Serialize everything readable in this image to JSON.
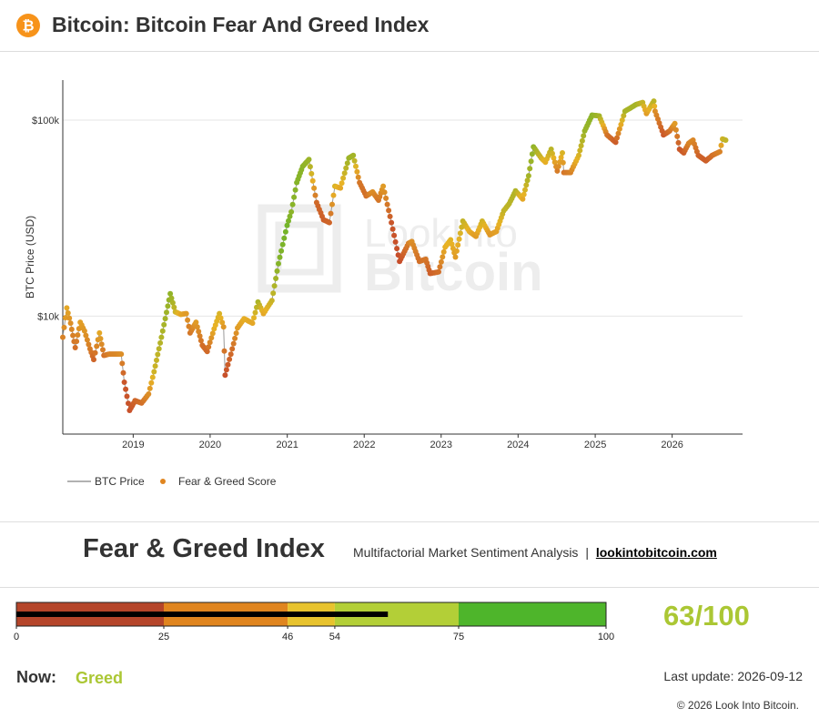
{
  "header": {
    "logo_icon": "bitcoin-logo-icon",
    "logo_color": "#f7931a",
    "logo_glyph": "₿",
    "title": "Bitcoin: Bitcoin Fear And Greed Index"
  },
  "chart_data": {
    "type": "scatter",
    "title": "",
    "xlabel": "",
    "ylabel": "BTC Price (USD)",
    "y_scale": "log",
    "ylim": [
      2500,
      160000
    ],
    "xlim": [
      "2018-02-01",
      "2026-12-01"
    ],
    "y_ticks": [
      {
        "value": 10000,
        "label": "$10k"
      },
      {
        "value": 100000,
        "label": "$100k"
      }
    ],
    "x_ticks": [
      "2019",
      "2020",
      "2021",
      "2022",
      "2023",
      "2024",
      "2025",
      "2026"
    ],
    "grid": "horizontal",
    "legend": {
      "placement": "bottom-left",
      "items": [
        {
          "label": "BTC Price",
          "kind": "line",
          "color": "#999999"
        },
        {
          "label": "Fear & Greed Score",
          "kind": "marker",
          "color": "#e0851f"
        }
      ]
    },
    "watermark": "LookIntoBitcoin",
    "color_scale": {
      "fear": "#c0392b",
      "neutral": "#e8b325",
      "greed": "#4eb52b"
    },
    "series": [
      {
        "name": "BTC Price",
        "points": [
          [
            "2018-02-01",
            7800,
            30
          ],
          [
            "2018-02-20",
            11000,
            45
          ],
          [
            "2018-03-10",
            9200,
            35
          ],
          [
            "2018-04-01",
            6900,
            22
          ],
          [
            "2018-04-25",
            9300,
            42
          ],
          [
            "2018-05-15",
            8400,
            38
          ],
          [
            "2018-06-10",
            6800,
            28
          ],
          [
            "2018-06-28",
            6000,
            18
          ],
          [
            "2018-07-25",
            8200,
            45
          ],
          [
            "2018-08-15",
            6300,
            22
          ],
          [
            "2018-09-10",
            6400,
            30
          ],
          [
            "2018-10-15",
            6400,
            32
          ],
          [
            "2018-11-05",
            6400,
            35
          ],
          [
            "2018-11-20",
            4600,
            12
          ],
          [
            "2018-12-15",
            3300,
            10
          ],
          [
            "2019-01-10",
            3700,
            18
          ],
          [
            "2019-02-10",
            3600,
            22
          ],
          [
            "2019-03-15",
            4000,
            35
          ],
          [
            "2019-04-10",
            5200,
            58
          ],
          [
            "2019-05-15",
            7800,
            68
          ],
          [
            "2019-06-26",
            13000,
            78
          ],
          [
            "2019-07-20",
            10500,
            60
          ],
          [
            "2019-08-15",
            10200,
            45
          ],
          [
            "2019-09-10",
            10300,
            40
          ],
          [
            "2019-09-28",
            8200,
            25
          ],
          [
            "2019-10-26",
            9300,
            40
          ],
          [
            "2019-11-25",
            7100,
            22
          ],
          [
            "2019-12-18",
            6600,
            20
          ],
          [
            "2020-01-20",
            8600,
            48
          ],
          [
            "2020-02-14",
            10300,
            55
          ],
          [
            "2020-03-05",
            8800,
            38
          ],
          [
            "2020-03-12",
            5000,
            10
          ],
          [
            "2020-04-15",
            6800,
            22
          ],
          [
            "2020-05-10",
            8700,
            40
          ],
          [
            "2020-06-10",
            9700,
            48
          ],
          [
            "2020-07-20",
            9200,
            45
          ],
          [
            "2020-08-15",
            11800,
            70
          ],
          [
            "2020-09-10",
            10300,
            45
          ],
          [
            "2020-10-20",
            12000,
            60
          ],
          [
            "2020-11-20",
            18500,
            82
          ],
          [
            "2020-12-31",
            29000,
            88
          ],
          [
            "2021-01-20",
            34000,
            80
          ],
          [
            "2021-02-15",
            48000,
            82
          ],
          [
            "2021-03-15",
            58000,
            80
          ],
          [
            "2021-04-14",
            63000,
            75
          ],
          [
            "2021-05-20",
            38000,
            20
          ],
          [
            "2021-06-22",
            31000,
            15
          ],
          [
            "2021-07-20",
            30000,
            18
          ],
          [
            "2021-08-15",
            46000,
            55
          ],
          [
            "2021-09-10",
            45000,
            45
          ],
          [
            "2021-10-20",
            64000,
            75
          ],
          [
            "2021-11-10",
            66000,
            72
          ],
          [
            "2021-12-10",
            48000,
            25
          ],
          [
            "2022-01-10",
            41000,
            22
          ],
          [
            "2022-02-10",
            43000,
            35
          ],
          [
            "2022-03-10",
            39000,
            25
          ],
          [
            "2022-04-01",
            46000,
            40
          ],
          [
            "2022-05-10",
            30000,
            12
          ],
          [
            "2022-06-18",
            19000,
            8
          ],
          [
            "2022-07-30",
            23500,
            28
          ],
          [
            "2022-08-15",
            24000,
            35
          ],
          [
            "2022-09-20",
            19000,
            22
          ],
          [
            "2022-10-20",
            19500,
            25
          ],
          [
            "2022-11-10",
            16500,
            15
          ],
          [
            "2022-12-20",
            16800,
            22
          ],
          [
            "2023-01-20",
            22500,
            48
          ],
          [
            "2023-02-15",
            24500,
            52
          ],
          [
            "2023-03-10",
            20000,
            40
          ],
          [
            "2023-04-14",
            30500,
            62
          ],
          [
            "2023-05-15",
            27000,
            48
          ],
          [
            "2023-06-15",
            25500,
            40
          ],
          [
            "2023-07-15",
            30500,
            58
          ],
          [
            "2023-08-20",
            26000,
            38
          ],
          [
            "2023-09-20",
            27000,
            42
          ],
          [
            "2023-10-25",
            34500,
            62
          ],
          [
            "2023-11-20",
            37500,
            65
          ],
          [
            "2023-12-20",
            43500,
            68
          ],
          [
            "2024-01-23",
            39500,
            45
          ],
          [
            "2024-02-20",
            52000,
            72
          ],
          [
            "2024-03-14",
            73000,
            78
          ],
          [
            "2024-04-20",
            64000,
            58
          ],
          [
            "2024-05-10",
            61000,
            48
          ],
          [
            "2024-06-06",
            71000,
            65
          ],
          [
            "2024-07-05",
            55000,
            28
          ],
          [
            "2024-07-29",
            68000,
            55
          ],
          [
            "2024-08-05",
            54000,
            25
          ],
          [
            "2024-09-06",
            54000,
            30
          ],
          [
            "2024-10-15",
            66000,
            55
          ],
          [
            "2024-11-12",
            88000,
            75
          ],
          [
            "2024-12-17",
            106000,
            80
          ],
          [
            "2025-01-20",
            105000,
            72
          ],
          [
            "2025-02-26",
            84000,
            25
          ],
          [
            "2025-04-08",
            77000,
            15
          ],
          [
            "2025-05-22",
            111000,
            70
          ],
          [
            "2025-07-14",
            120000,
            72
          ],
          [
            "2025-08-14",
            123000,
            62
          ],
          [
            "2025-09-01",
            108000,
            40
          ],
          [
            "2025-10-06",
            125000,
            65
          ],
          [
            "2025-10-12",
            111000,
            35
          ],
          [
            "2025-11-21",
            84000,
            12
          ],
          [
            "2025-12-20",
            88000,
            22
          ],
          [
            "2026-01-14",
            96000,
            40
          ],
          [
            "2026-02-05",
            71000,
            12
          ],
          [
            "2026-02-25",
            68000,
            15
          ],
          [
            "2026-03-20",
            76000,
            30
          ],
          [
            "2026-04-10",
            79000,
            32
          ],
          [
            "2026-05-05",
            66000,
            18
          ],
          [
            "2026-06-10",
            62000,
            15
          ],
          [
            "2026-07-10",
            66000,
            22
          ],
          [
            "2026-08-15",
            69000,
            30
          ],
          [
            "2026-08-28",
            80000,
            58
          ],
          [
            "2026-09-12",
            79000,
            63
          ]
        ]
      }
    ]
  },
  "index_section": {
    "title": "Fear & Greed Index",
    "subtitle": "Multifactorial Market Sentiment Analysis",
    "separator": "|",
    "link_text": "lookintobitcoin.com"
  },
  "gauge": {
    "value": 63,
    "max": 100,
    "score_text": "63/100",
    "score_color": "#abc734",
    "segments": [
      {
        "from": 0,
        "to": 25,
        "color": "#b5452a"
      },
      {
        "from": 25,
        "to": 46,
        "color": "#e0851f"
      },
      {
        "from": 46,
        "to": 54,
        "color": "#e8c32e"
      },
      {
        "from": 54,
        "to": 75,
        "color": "#b3cf37"
      },
      {
        "from": 75,
        "to": 100,
        "color": "#4eb52b"
      }
    ],
    "ticks": [
      "0",
      "25",
      "46",
      "54",
      "75",
      "100"
    ]
  },
  "status": {
    "now_label": "Now:",
    "now_value": "Greed",
    "now_color": "#abc734",
    "last_update": "Last update: 2026-09-12"
  },
  "footer": {
    "copyright": "© 2026 Look Into Bitcoin."
  }
}
